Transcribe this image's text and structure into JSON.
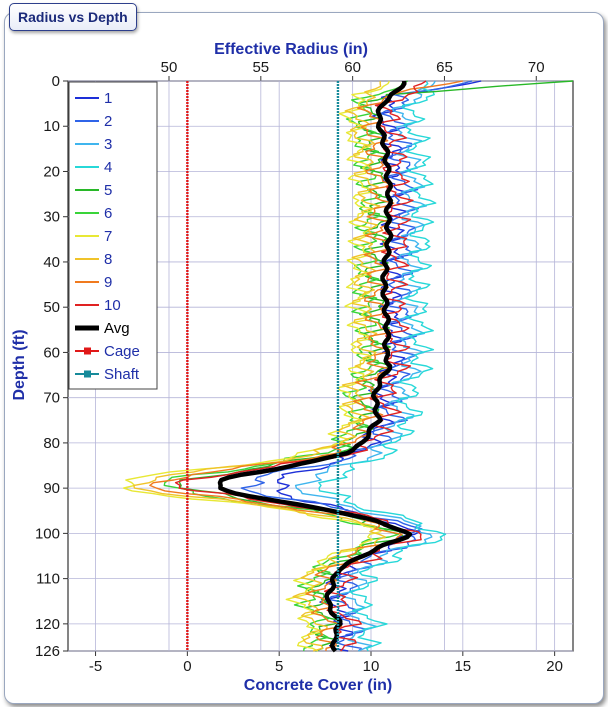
{
  "panel": {
    "tab_label": "Radius vs Depth"
  },
  "chart_data": {
    "type": "line",
    "title": "Radius vs Depth",
    "x_top_label": "Effective  Radius (in)",
    "x_bottom_label": "Concrete Cover (in)",
    "ylabel": "Depth (ft)",
    "x_top_ticks": [
      "50",
      "55",
      "60",
      "65",
      "70"
    ],
    "x_bottom_ticks": [
      "-5",
      "0",
      "5",
      "10",
      "15",
      "20"
    ],
    "y_ticks": [
      "0",
      "10",
      "20",
      "30",
      "40",
      "50",
      "60",
      "70",
      "80",
      "90",
      "100",
      "110",
      "120",
      "126"
    ],
    "xlim_cover": [
      -6.5,
      21
    ],
    "ylim": [
      0,
      126
    ],
    "grid": true,
    "legend_position": "top-left",
    "cage_cover": 0,
    "shaft_cover": 8.2,
    "avg_profile": [
      [
        0,
        11.8
      ],
      [
        2,
        11.5
      ],
      [
        5,
        10.6
      ],
      [
        8,
        10.4
      ],
      [
        10,
        10.5
      ],
      [
        15,
        10.8
      ],
      [
        20,
        10.9
      ],
      [
        25,
        11.0
      ],
      [
        30,
        10.9
      ],
      [
        35,
        11.0
      ],
      [
        40,
        10.8
      ],
      [
        45,
        10.7
      ],
      [
        50,
        10.8
      ],
      [
        55,
        10.9
      ],
      [
        60,
        10.8
      ],
      [
        63,
        11.0
      ],
      [
        67,
        10.4
      ],
      [
        70,
        10.2
      ],
      [
        75,
        10.4
      ],
      [
        78,
        9.8
      ],
      [
        80,
        9.6
      ],
      [
        82,
        8.8
      ],
      [
        84,
        7.0
      ],
      [
        86,
        4.5
      ],
      [
        87,
        3.0
      ],
      [
        88,
        2.0
      ],
      [
        89,
        1.7
      ],
      [
        90,
        1.7
      ],
      [
        91,
        2.5
      ],
      [
        93,
        5.0
      ],
      [
        95,
        8.0
      ],
      [
        97,
        10.0
      ],
      [
        99,
        11.5
      ],
      [
        100,
        12.1
      ],
      [
        101,
        11.8
      ],
      [
        103,
        10.5
      ],
      [
        105,
        9.5
      ],
      [
        108,
        8.2
      ],
      [
        110,
        8.0
      ],
      [
        115,
        7.6
      ],
      [
        118,
        8.0
      ],
      [
        120,
        8.3
      ],
      [
        123,
        8.0
      ],
      [
        126,
        8.0
      ]
    ],
    "series": [
      {
        "name": "1",
        "color": "#1d2fd8",
        "offset": 0.3,
        "dip": 1.2,
        "phase": 0.0,
        "amp": 0.45,
        "top": 16.0
      },
      {
        "name": "2",
        "color": "#2f64e8",
        "offset": 0.8,
        "dip": 0.5,
        "phase": 1.1,
        "amp": 0.55,
        "top": 15.5
      },
      {
        "name": "3",
        "color": "#3fb5ee",
        "offset": 1.3,
        "dip": 1.6,
        "phase": 2.2,
        "amp": 0.5,
        "top": 13.5
      },
      {
        "name": "4",
        "color": "#27d8d8",
        "offset": 1.8,
        "dip": 2.0,
        "phase": 3.1,
        "amp": 0.5,
        "top": 13.0
      },
      {
        "name": "5",
        "color": "#28b828",
        "offset": -0.6,
        "dip": -0.6,
        "phase": 4.0,
        "amp": 0.55,
        "top": 21.0
      },
      {
        "name": "6",
        "color": "#39d439",
        "offset": -1.1,
        "dip": -0.9,
        "phase": 5.2,
        "amp": 0.5,
        "top": 12.0
      },
      {
        "name": "7",
        "color": "#e8e835",
        "offset": -1.5,
        "dip": -1.8,
        "phase": 0.7,
        "amp": 0.45,
        "top": 11.0
      },
      {
        "name": "8",
        "color": "#f0c32a",
        "offset": -1.2,
        "dip": -1.5,
        "phase": 1.8,
        "amp": 0.45,
        "top": 10.5
      },
      {
        "name": "9",
        "color": "#f07a1e",
        "offset": -0.5,
        "dip": -1.2,
        "phase": 2.7,
        "amp": 0.5,
        "top": 15.0
      },
      {
        "name": "10",
        "color": "#e02222",
        "offset": 0.5,
        "dip": -0.8,
        "phase": 3.6,
        "amp": 0.55,
        "top": 13.0
      },
      {
        "name": "Avg",
        "color": "#000000",
        "avg": true
      },
      {
        "name": "Cage",
        "color": "#e01818",
        "marker": true
      },
      {
        "name": "Shaft",
        "color": "#168a9a",
        "marker": true
      }
    ]
  }
}
